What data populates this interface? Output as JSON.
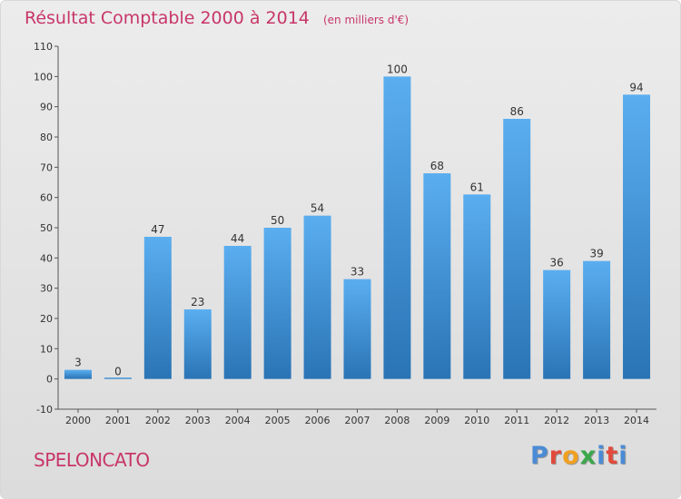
{
  "header": {
    "title": "Résultat Comptable 2000 à 2014",
    "subtitle": "(en milliers d'€)"
  },
  "footer": {
    "commune": "SPELONCATO",
    "logo_text": "Proxiti"
  },
  "colors": {
    "title": "#c8366a",
    "bar_top": "#5aaef0",
    "bar_bottom": "#2a74b5",
    "axis": "#555555"
  },
  "chart_data": {
    "type": "bar",
    "categories": [
      "2000",
      "2001",
      "2002",
      "2003",
      "2004",
      "2005",
      "2006",
      "2007",
      "2008",
      "2009",
      "2010",
      "2011",
      "2012",
      "2013",
      "2014"
    ],
    "values": [
      3,
      0,
      47,
      23,
      44,
      50,
      54,
      33,
      100,
      68,
      61,
      86,
      36,
      39,
      94
    ],
    "title": "Résultat Comptable 2000 à 2014",
    "subtitle": "(en milliers d'€)",
    "xlabel": "",
    "ylabel": "",
    "ylim": [
      -10,
      110
    ],
    "yticks": [
      -10,
      0,
      10,
      20,
      30,
      40,
      50,
      60,
      70,
      80,
      90,
      100,
      110
    ],
    "grid": false,
    "legend": "none"
  }
}
